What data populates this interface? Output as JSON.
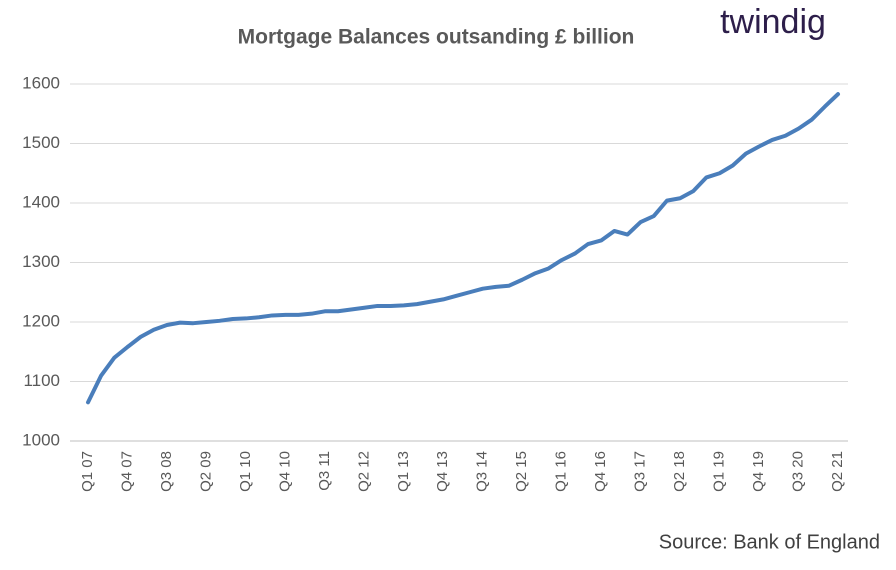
{
  "logo": "twindig",
  "chart_data": {
    "type": "line",
    "title": "Mortgage Balances outsanding £ billion",
    "source": "Source: Bank of England",
    "categories": [
      "Q1 07",
      null,
      null,
      "Q4 07",
      null,
      null,
      "Q3 08",
      null,
      null,
      "Q2 09",
      null,
      null,
      "Q1 10",
      null,
      null,
      "Q4 10",
      null,
      null,
      "Q3 11",
      null,
      null,
      "Q2 12",
      null,
      null,
      "Q1 13",
      null,
      null,
      "Q4 13",
      null,
      null,
      "Q3 14",
      null,
      null,
      "Q2 15",
      null,
      null,
      "Q1 16",
      null,
      null,
      "Q4 16",
      null,
      null,
      "Q3 17",
      null,
      null,
      "Q2 18",
      null,
      null,
      "Q1 19",
      null,
      null,
      "Q4 19",
      null,
      null,
      "Q3 20",
      null,
      null,
      "Q2 21"
    ],
    "series": [
      {
        "name": "Mortgage balances",
        "color": "#4a7ebb",
        "values": [
          1065,
          1110,
          1140,
          1158,
          1175,
          1187,
          1195,
          1199,
          1198,
          1200,
          1202,
          1205,
          1206,
          1208,
          1211,
          1212,
          1212,
          1214,
          1218,
          1218,
          1221,
          1224,
          1227,
          1227,
          1228,
          1230,
          1234,
          1238,
          1244,
          1250,
          1256,
          1259,
          1261,
          1271,
          1282,
          1290,
          1304,
          1315,
          1331,
          1337,
          1353,
          1347,
          1368,
          1378,
          1404,
          1408,
          1420,
          1443,
          1450,
          1463,
          1483,
          1495,
          1506,
          1513,
          1525,
          1540,
          1562,
          1583
        ]
      }
    ],
    "ylim": [
      1000,
      1600
    ],
    "yticks": [
      1000,
      1100,
      1200,
      1300,
      1400,
      1500,
      1600
    ],
    "grid": true
  }
}
